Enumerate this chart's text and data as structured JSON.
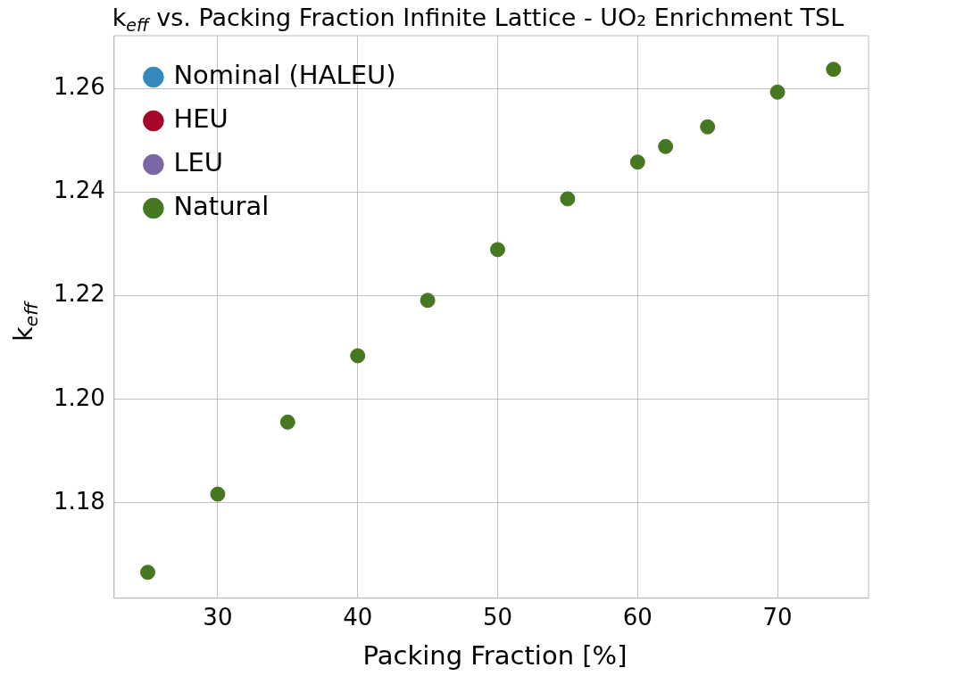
{
  "chart_data": {
    "type": "scatter",
    "title": "k$_{eff}$ vs. Packing Fraction Infinite Lattice - UO₂ Enrichment TSL",
    "xlabel": "Packing Fraction [%]",
    "ylabel": "k$_{eff}$",
    "x": [
      25,
      30,
      35,
      40,
      45,
      50,
      55,
      60,
      62,
      65,
      70,
      74
    ],
    "series": [
      {
        "name": "Nominal (HALEU)",
        "color": "#348abd",
        "values": [
          null,
          null,
          null,
          null,
          null,
          null,
          null,
          null,
          null,
          null,
          null,
          null
        ]
      },
      {
        "name": "HEU",
        "color": "#a60628",
        "values": [
          null,
          null,
          null,
          null,
          null,
          null,
          null,
          null,
          null,
          null,
          null,
          null
        ]
      },
      {
        "name": "LEU",
        "color": "#7a68a6",
        "values": [
          null,
          null,
          null,
          null,
          null,
          null,
          null,
          null,
          null,
          null,
          null,
          null
        ]
      },
      {
        "name": "Natural",
        "color": "#467821",
        "values": [
          1.1666,
          1.1817,
          1.1956,
          1.2084,
          1.2191,
          1.2289,
          1.2387,
          1.2458,
          1.2488,
          1.2526,
          1.2593,
          1.2637
        ]
      }
    ],
    "xlim": [
      22.6,
      76.5
    ],
    "ylim": [
      1.1616,
      1.2702
    ],
    "xticks": [
      30,
      40,
      50,
      60,
      70
    ],
    "yticks": [
      {
        "value": 1.18,
        "label": "1.18"
      },
      {
        "value": 1.2,
        "label": "1.20"
      },
      {
        "value": 1.22,
        "label": "1.22"
      },
      {
        "value": 1.24,
        "label": "1.24"
      },
      {
        "value": 1.26,
        "label": "1.26"
      }
    ],
    "grid": true,
    "legend": "top left",
    "marker": "circle"
  }
}
